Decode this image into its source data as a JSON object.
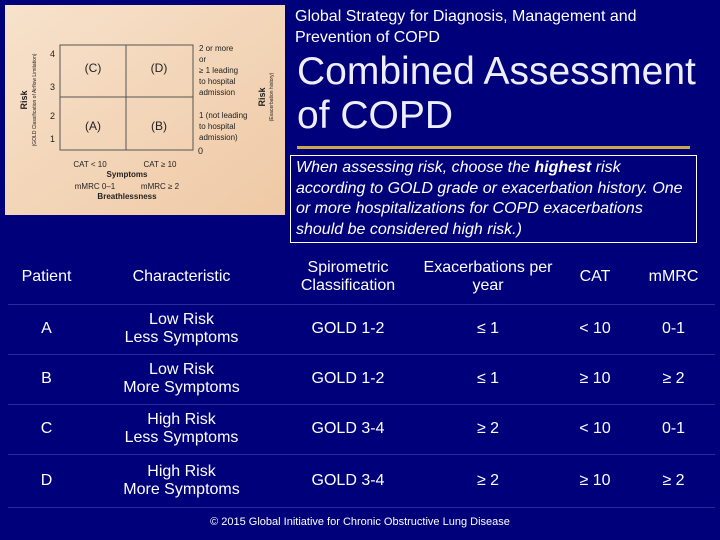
{
  "header": {
    "subtitle": "Global Strategy for Diagnosis, Management and Prevention of COPD",
    "title": "Combined Assessment of COPD"
  },
  "note": [
    "When assessing risk, choose the ",
    "highest",
    " risk according to GOLD grade or exacerbation history. One or more hospitalizations for COPD exacerbations should be considered high risk.)"
  ],
  "diagram": {
    "quadrants": [
      "(C)",
      "(D)",
      "(A)",
      "(B)"
    ],
    "left_ticks": [
      "4",
      "3",
      "2",
      "1"
    ],
    "right_zero": "0",
    "left_axis": [
      "Risk",
      "(GOLD Classification of Airflow Limitation)"
    ],
    "right_axis": [
      "Risk",
      "(Exacerbation history)"
    ],
    "upper_label": [
      "2 or more",
      "or",
      "≥ 1 leading",
      "to hospital",
      "admission"
    ],
    "lower_label": [
      "1 (not leading",
      "to hospital",
      "admission)"
    ],
    "cat": [
      "CAT < 10",
      "CAT ≥ 10"
    ],
    "symptoms": "Symptoms",
    "mmrc": [
      "mMRC 0–1",
      "mMRC ≥ 2"
    ],
    "breathlessness": "Breathlessness"
  },
  "table": {
    "columns": [
      "Patient",
      "Characteristic",
      "Spirometric Classification",
      "Exacerbations per year",
      "CAT",
      "mMRC"
    ],
    "rows": [
      [
        "A",
        [
          "Low Risk",
          "Less Symptoms"
        ],
        "GOLD 1-2",
        "≤ 1",
        "< 10",
        "0-1"
      ],
      [
        "B",
        [
          "Low Risk",
          "More Symptoms"
        ],
        "GOLD 1-2",
        "≤ 1",
        "≥ 10",
        "≥ 2"
      ],
      [
        "C",
        [
          "High Risk",
          "Less Symptoms"
        ],
        "GOLD 3-4",
        "≥ 2",
        "< 10",
        "0-1"
      ],
      [
        "D",
        [
          "High Risk",
          "More Symptoms"
        ],
        "GOLD 3-4",
        "≥ 2",
        "≥ 10",
        "≥ 2"
      ]
    ]
  },
  "footer": "© 2015 Global Initiative for Chronic Obstructive Lung Disease"
}
